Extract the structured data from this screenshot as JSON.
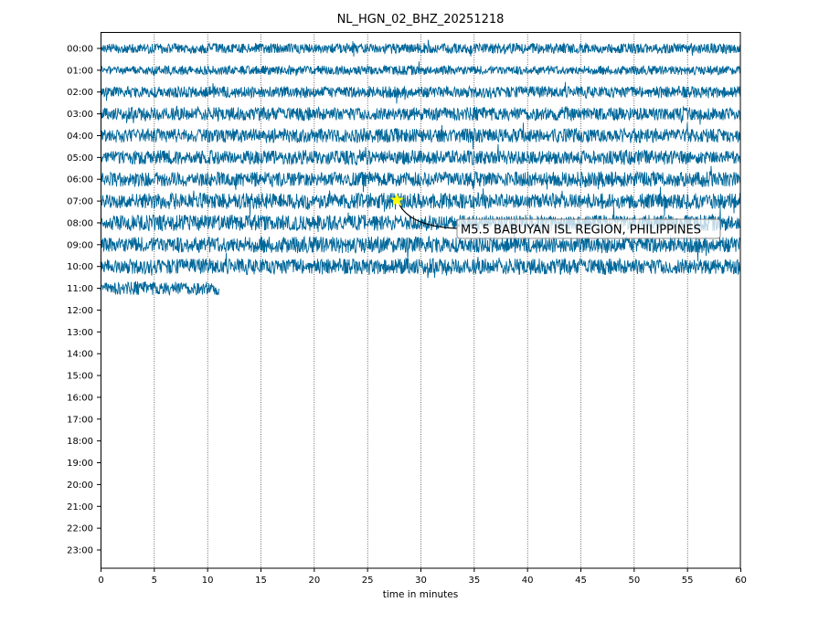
{
  "chart_data": {
    "type": "line",
    "title": "NL_HGN_02_BHZ_20251218",
    "xlabel": "time in minutes",
    "ylabel": "",
    "xlim": [
      0,
      60
    ],
    "x_ticks": [
      "0",
      "5",
      "10",
      "15",
      "20",
      "25",
      "30",
      "35",
      "40",
      "45",
      "50",
      "55",
      "60"
    ],
    "x_tick_values": [
      0,
      5,
      10,
      15,
      20,
      25,
      30,
      35,
      40,
      45,
      50,
      55,
      60
    ],
    "row_labels": [
      "00:00",
      "01:00",
      "02:00",
      "03:00",
      "04:00",
      "05:00",
      "06:00",
      "07:00",
      "08:00",
      "09:00",
      "10:00",
      "11:00",
      "12:00",
      "13:00",
      "14:00",
      "15:00",
      "16:00",
      "17:00",
      "18:00",
      "19:00",
      "20:00",
      "21:00",
      "22:00",
      "23:00"
    ],
    "series": [
      {
        "row": "00:00",
        "start_min": 0,
        "end_min": 60,
        "relative_amplitude": 0.6
      },
      {
        "row": "01:00",
        "start_min": 0,
        "end_min": 60,
        "relative_amplitude": 0.55
      },
      {
        "row": "02:00",
        "start_min": 0,
        "end_min": 60,
        "relative_amplitude": 0.7
      },
      {
        "row": "03:00",
        "start_min": 0,
        "end_min": 60,
        "relative_amplitude": 0.8
      },
      {
        "row": "04:00",
        "start_min": 0,
        "end_min": 60,
        "relative_amplitude": 0.85
      },
      {
        "row": "05:00",
        "start_min": 0,
        "end_min": 60,
        "relative_amplitude": 0.85
      },
      {
        "row": "06:00",
        "start_min": 0,
        "end_min": 60,
        "relative_amplitude": 0.9
      },
      {
        "row": "07:00",
        "start_min": 0,
        "end_min": 60,
        "relative_amplitude": 0.95
      },
      {
        "row": "08:00",
        "start_min": 0,
        "end_min": 60,
        "relative_amplitude": 0.95
      },
      {
        "row": "09:00",
        "start_min": 0,
        "end_min": 60,
        "relative_amplitude": 1.0
      },
      {
        "row": "10:00",
        "start_min": 0,
        "end_min": 60,
        "relative_amplitude": 0.95
      },
      {
        "row": "11:00",
        "start_min": 0,
        "end_min": 11.1,
        "relative_amplitude": 0.8
      }
    ],
    "grid": "vertical dotted",
    "annotations": [
      {
        "text": "M5.5 BABUYAN ISL REGION, PHILIPPINES",
        "row": "07:00",
        "minute": 27.8,
        "marker": "star"
      }
    ],
    "colors": {
      "trace": "#00679a",
      "marker": "#ffff00"
    }
  }
}
